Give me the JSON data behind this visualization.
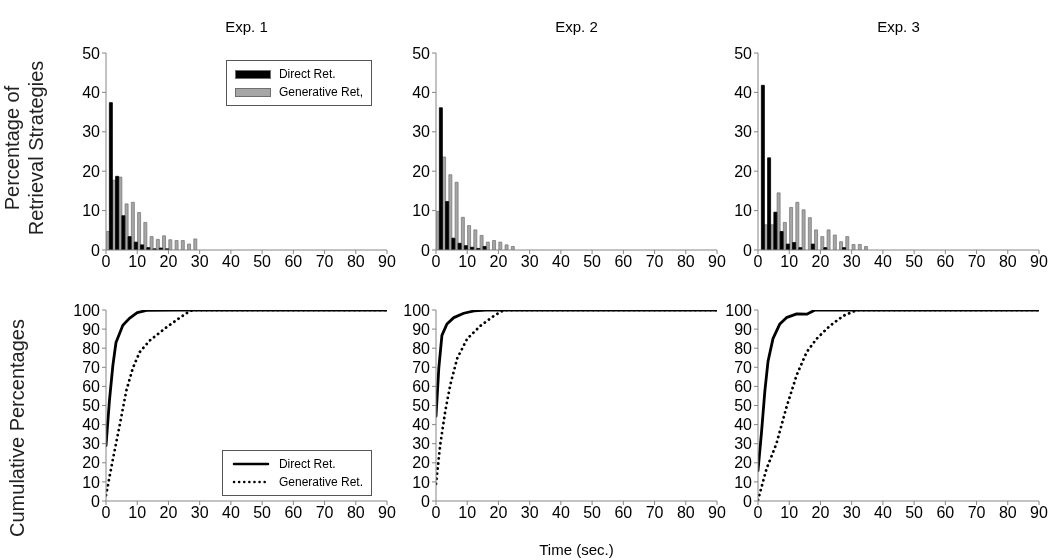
{
  "chart_data": [
    {
      "type": "bar",
      "title": "Exp. 1",
      "ylabel": "Percentage of Retrieval Strategies",
      "x": [
        1,
        3,
        5,
        7,
        9,
        11,
        13,
        15,
        17,
        19,
        21,
        23,
        25,
        27,
        29
      ],
      "series": [
        {
          "name": "Direct Ret.",
          "color": "#000000",
          "values": [
            37.4,
            18.7,
            8.7,
            3.4,
            2.0,
            1.3,
            0.6,
            0.3,
            0.5,
            0.3,
            0,
            0,
            0,
            0,
            0
          ]
        },
        {
          "name": "Generative Ret,",
          "color": "#a6a6a6",
          "values": [
            4.7,
            17.7,
            18.5,
            11.7,
            12.1,
            9.5,
            7.0,
            3.4,
            2.7,
            3.6,
            2.6,
            2.4,
            2.4,
            1.5,
            2.8
          ]
        }
      ],
      "xlim": [
        0,
        90
      ],
      "xticks": [
        0,
        10,
        20,
        30,
        40,
        50,
        60,
        70,
        80,
        90
      ],
      "ylim": [
        0,
        50
      ],
      "yticks": [
        0,
        10,
        20,
        30,
        40,
        50
      ],
      "grid": false,
      "legend": "top right"
    },
    {
      "type": "bar",
      "title": "Exp. 2",
      "x": [
        1,
        3,
        5,
        7,
        9,
        11,
        13,
        15,
        17,
        19,
        21,
        23,
        25
      ],
      "series": [
        {
          "color": "#000000",
          "values": [
            36.1,
            12.3,
            3.0,
            1.7,
            1.1,
            0.7,
            0.4,
            0.9,
            0,
            0,
            0,
            0,
            0
          ]
        },
        {
          "color": "#a6a6a6",
          "values": [
            9.8,
            23.6,
            19.1,
            17.2,
            8.3,
            6.2,
            5.1,
            3.7,
            2.0,
            2.4,
            2.0,
            1.3,
            0.9
          ]
        }
      ],
      "xlim": [
        0,
        90
      ],
      "xticks": [
        0,
        10,
        20,
        30,
        40,
        50,
        60,
        70,
        80,
        90
      ],
      "ylim": [
        0,
        50
      ],
      "yticks": [
        0,
        10,
        20,
        30,
        40,
        50
      ],
      "grid": false,
      "legend": false
    },
    {
      "type": "bar",
      "title": "Exp. 3",
      "x": [
        1,
        3,
        5,
        7,
        9,
        11,
        13,
        15,
        17,
        19,
        21,
        23,
        25,
        27,
        29,
        31,
        33,
        35
      ],
      "series": [
        {
          "color": "#000000",
          "values": [
            41.8,
            23.4,
            9.6,
            4.7,
            1.5,
            1.9,
            0.6,
            0,
            1.5,
            0,
            0.6,
            0,
            0,
            0.6,
            0,
            0,
            0,
            0
          ]
        },
        {
          "color": "#a6a6a6",
          "values": [
            null,
            6.4,
            6.4,
            14.5,
            7.0,
            10.8,
            12.1,
            10.2,
            8.2,
            5.1,
            3.4,
            5.1,
            3.8,
            2.1,
            3.4,
            1.4,
            1.4,
            0.9
          ]
        }
      ],
      "xlim": [
        0,
        90
      ],
      "xticks": [
        0,
        10,
        20,
        30,
        40,
        50,
        60,
        70,
        80,
        90
      ],
      "ylim": [
        0,
        50
      ],
      "yticks": [
        0,
        10,
        20,
        30,
        40,
        50
      ],
      "grid": false,
      "legend": false
    },
    {
      "type": "line",
      "ylabel": "Cumulative Percentages",
      "series": [
        {
          "name": "Direct Ret.",
          "color": "#000000",
          "line_style": "solid",
          "x": [
            0,
            1.1,
            2.2,
            3.2,
            5.4,
            7.5,
            10,
            13,
            22.6,
            90
          ],
          "values": [
            29,
            52.6,
            71,
            83,
            92,
            95.6,
            98.6,
            99.8,
            100,
            100
          ]
        },
        {
          "name": "Generative Ret.",
          "color": "#000000",
          "line_style": "dotted",
          "x": [
            0,
            2.2,
            4.3,
            6.5,
            8.6,
            10.8,
            14,
            19.4,
            23.7,
            26.9,
            28,
            90
          ],
          "values": [
            3,
            21.8,
            39,
            57.7,
            69.6,
            78,
            84,
            91,
            96,
            99.5,
            100,
            100
          ]
        }
      ],
      "xlim": [
        0,
        90
      ],
      "xticks": [
        0,
        10,
        20,
        30,
        40,
        50,
        60,
        70,
        80,
        90
      ],
      "ylim": [
        0,
        100
      ],
      "yticks": [
        0,
        10,
        20,
        30,
        40,
        50,
        60,
        70,
        80,
        90,
        100
      ],
      "grid": false,
      "legend": "bottom right",
      "marker": "none"
    },
    {
      "type": "line",
      "xlabel": "Time (sec.)",
      "series": [
        {
          "color": "#000000",
          "line_style": "solid",
          "x": [
            0,
            0.9,
            1.9,
            3.5,
            5.7,
            8.9,
            12.2,
            15.9,
            90
          ],
          "values": [
            44.4,
            69.6,
            86.7,
            92.7,
            96,
            98.3,
            99.5,
            100,
            100
          ]
        },
        {
          "color": "#000000",
          "line_style": "dotted",
          "x": [
            0,
            1.4,
            3,
            4.6,
            6.8,
            10,
            14.3,
            18.6,
            21.8,
            90
          ],
          "values": [
            9,
            30,
            47.4,
            61,
            74.7,
            85,
            91.8,
            97,
            100,
            100
          ]
        }
      ],
      "xlim": [
        0,
        90
      ],
      "xticks": [
        0,
        10,
        20,
        30,
        40,
        50,
        60,
        70,
        80,
        90
      ],
      "ylim": [
        0,
        100
      ],
      "yticks": [
        0,
        10,
        20,
        30,
        40,
        50,
        60,
        70,
        80,
        90,
        100
      ],
      "grid": false,
      "legend": false,
      "marker": "none"
    },
    {
      "type": "line",
      "series": [
        {
          "color": "#000000",
          "line_style": "solid",
          "x": [
            0,
            1.1,
            2.2,
            3.2,
            4.8,
            7,
            9.1,
            12.4,
            15.6,
            18.3,
            29,
            90
          ],
          "values": [
            15.9,
            35.5,
            57.7,
            73,
            85,
            92.7,
            96,
            98,
            97.8,
            100,
            100,
            100
          ]
        },
        {
          "color": "#000000",
          "line_style": "dotted",
          "x": [
            0,
            2.7,
            5.9,
            9.1,
            12.4,
            15.6,
            18.8,
            23.1,
            27.4,
            31.7,
            90
          ],
          "values": [
            0.5,
            16.7,
            30,
            49,
            66,
            78,
            85,
            91.8,
            97,
            100,
            100
          ]
        }
      ],
      "xlim": [
        0,
        90
      ],
      "xticks": [
        0,
        10,
        20,
        30,
        40,
        50,
        60,
        70,
        80,
        90
      ],
      "ylim": [
        0,
        100
      ],
      "yticks": [
        0,
        10,
        20,
        30,
        40,
        50,
        60,
        70,
        80,
        90,
        100
      ],
      "grid": false,
      "legend": false,
      "marker": "none"
    }
  ]
}
